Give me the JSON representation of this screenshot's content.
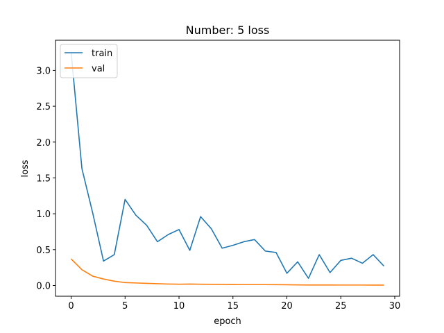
{
  "chart_data": {
    "type": "line",
    "title": "Number: 5 loss",
    "xlabel": "epoch",
    "ylabel": "loss",
    "xlim": [
      -1.45,
      30.45
    ],
    "ylim": [
      -0.15,
      3.42
    ],
    "xticks": [
      0,
      5,
      10,
      15,
      20,
      25,
      30
    ],
    "yticks": [
      0.0,
      0.5,
      1.0,
      1.5,
      2.0,
      2.5,
      3.0
    ],
    "xtick_labels": [
      "0",
      "5",
      "10",
      "15",
      "20",
      "25",
      "30"
    ],
    "ytick_labels": [
      "0.0",
      "0.5",
      "1.0",
      "1.5",
      "2.0",
      "2.5",
      "3.0"
    ],
    "grid": false,
    "legend_position": "top-left",
    "x": [
      0,
      1,
      2,
      3,
      4,
      5,
      6,
      7,
      8,
      9,
      10,
      11,
      12,
      13,
      14,
      15,
      16,
      17,
      18,
      19,
      20,
      21,
      22,
      23,
      24,
      25,
      26,
      27,
      28,
      29
    ],
    "series": [
      {
        "name": "train",
        "color": "#1f77b4",
        "values": [
          3.25,
          1.63,
          1.01,
          0.34,
          0.43,
          1.2,
          0.98,
          0.84,
          0.61,
          0.71,
          0.78,
          0.49,
          0.96,
          0.79,
          0.52,
          0.56,
          0.61,
          0.64,
          0.48,
          0.46,
          0.17,
          0.33,
          0.1,
          0.43,
          0.18,
          0.35,
          0.38,
          0.31,
          0.43,
          0.27
        ]
      },
      {
        "name": "val",
        "color": "#ff7f0e",
        "values": [
          0.37,
          0.22,
          0.13,
          0.09,
          0.06,
          0.04,
          0.035,
          0.03,
          0.025,
          0.02,
          0.018,
          0.02,
          0.018,
          0.016,
          0.015,
          0.013,
          0.012,
          0.012,
          0.012,
          0.011,
          0.01,
          0.008,
          0.007,
          0.007,
          0.007,
          0.006,
          0.006,
          0.006,
          0.005,
          0.005
        ]
      }
    ]
  }
}
